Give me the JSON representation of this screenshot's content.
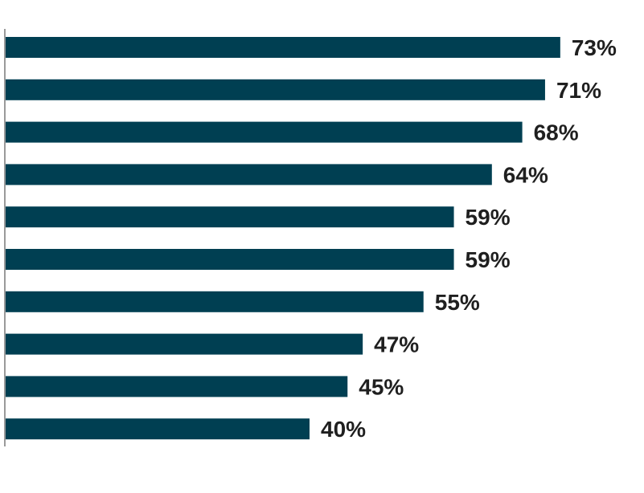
{
  "chart_data": {
    "type": "bar",
    "orientation": "horizontal",
    "values": [
      73,
      71,
      68,
      64,
      59,
      59,
      55,
      47,
      45,
      40
    ],
    "labels": [
      "73%",
      "71%",
      "68%",
      "64%",
      "59%",
      "59%",
      "55%",
      "47%",
      "45%",
      "40%"
    ],
    "xlim": [
      0,
      100
    ],
    "grid": false,
    "legend": "none"
  },
  "colors": {
    "bar": "#003f52",
    "axis": "#9a9a9a",
    "label": "#1f1f1f"
  }
}
